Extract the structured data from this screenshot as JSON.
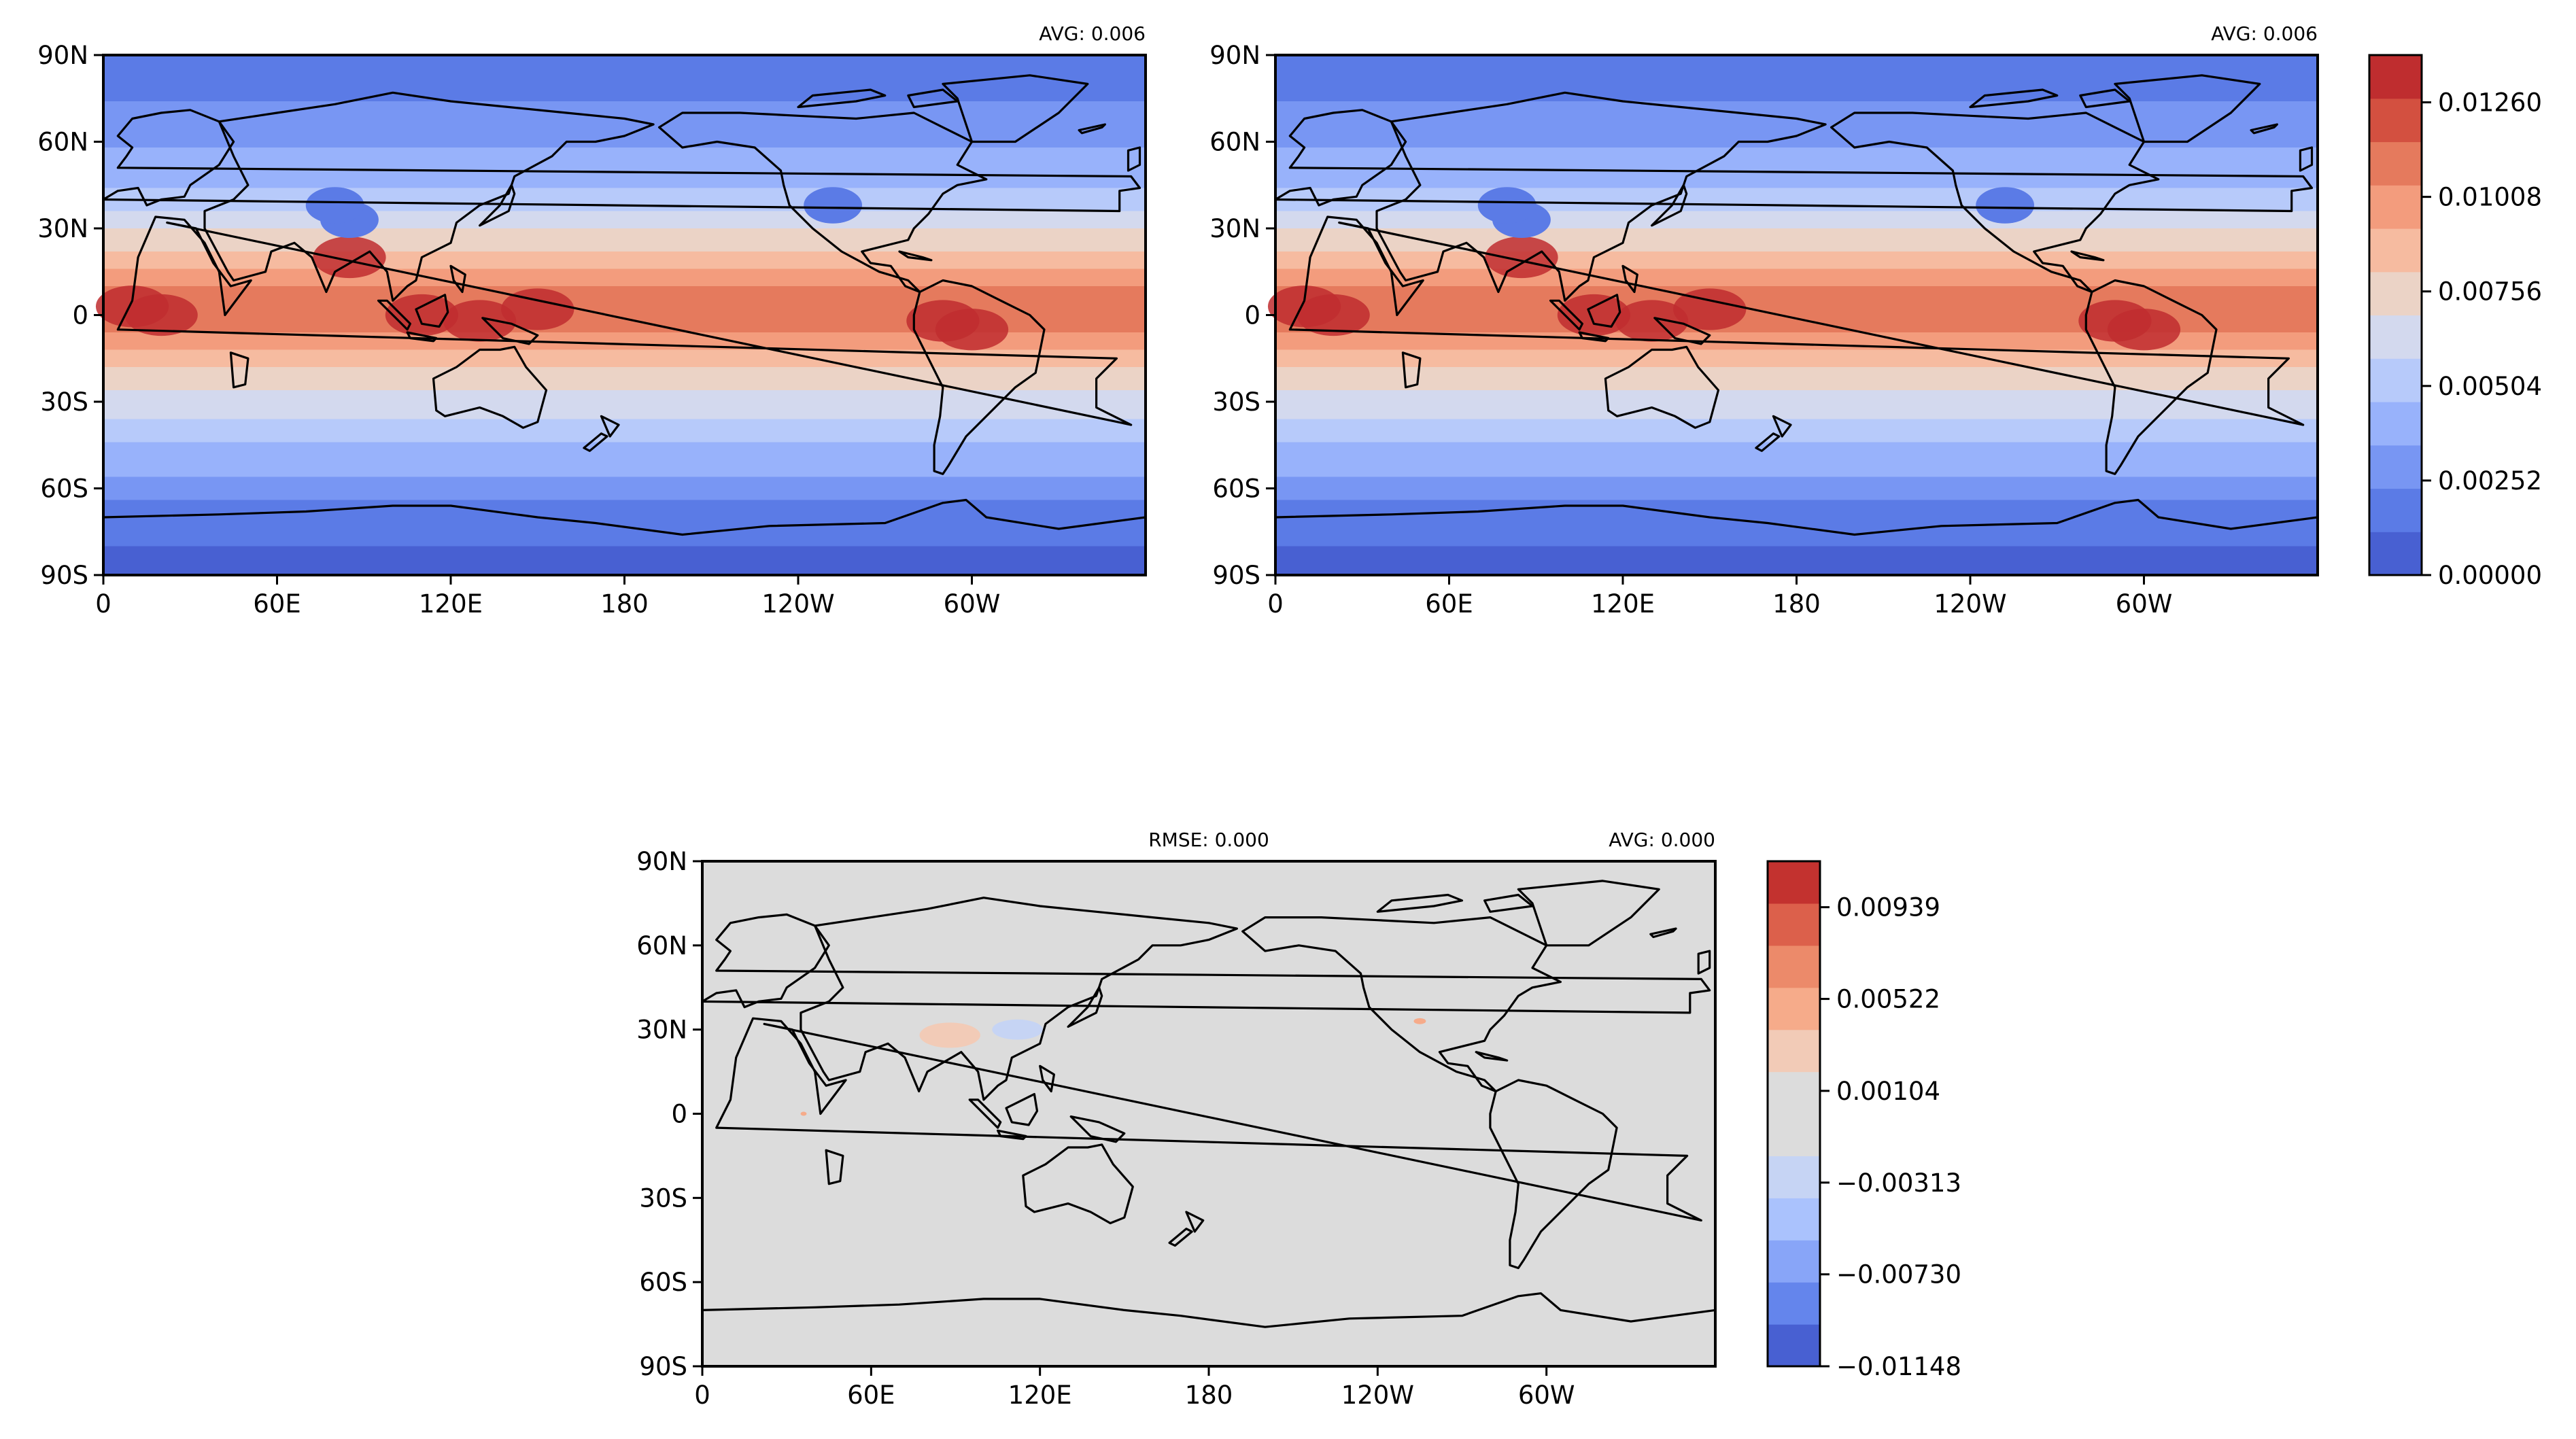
{
  "chart_data": [
    {
      "type": "heatmap",
      "panel": "top-left",
      "title": "",
      "stats": {
        "left": "",
        "right": "AVG: 0.006"
      },
      "x_ticks": [
        "0",
        "60E",
        "120E",
        "180",
        "120W",
        "60W"
      ],
      "y_ticks": [
        "90N",
        "60N",
        "30N",
        "0",
        "30S",
        "60S",
        "90S"
      ],
      "xlim": [
        0,
        360
      ],
      "ylim": [
        -90,
        90
      ],
      "legend": "none",
      "zonal_mean_profile": {
        "lat": [
          -90,
          -70,
          -60,
          -45,
          -30,
          -15,
          -5,
          5,
          15,
          30,
          45,
          60,
          75,
          90
        ],
        "value": [
          0.0008,
          0.0015,
          0.003,
          0.0045,
          0.0065,
          0.0085,
          0.0105,
          0.0112,
          0.0095,
          0.0068,
          0.0046,
          0.0032,
          0.0022,
          0.0016
        ]
      }
    },
    {
      "type": "heatmap",
      "panel": "top-right",
      "title": "",
      "stats": {
        "left": "",
        "right": "AVG: 0.006"
      },
      "x_ticks": [
        "0",
        "60E",
        "120E",
        "180",
        "120W",
        "60W"
      ],
      "y_ticks": [
        "90N",
        "60N",
        "30N",
        "0",
        "30S",
        "60S",
        "90S"
      ],
      "xlim": [
        0,
        360
      ],
      "ylim": [
        -90,
        90
      ],
      "legend": "colorbar-right",
      "colorbar": {
        "ticks": [
          "0.00000",
          "0.00252",
          "0.00504",
          "0.00756",
          "0.01008",
          "0.01260"
        ],
        "range": [
          0,
          0.01386
        ],
        "colors": [
          "#4860d2",
          "#5b7be6",
          "#7896f3",
          "#98b2fb",
          "#b7cafa",
          "#d3d9ee",
          "#ebd3c6",
          "#f6bba0",
          "#f39c7d",
          "#e57a5d",
          "#d35040",
          "#bf2d2f"
        ]
      },
      "zonal_mean_profile": {
        "lat": [
          -90,
          -70,
          -60,
          -45,
          -30,
          -15,
          -5,
          5,
          15,
          30,
          45,
          60,
          75,
          90
        ],
        "value": [
          0.0008,
          0.0015,
          0.003,
          0.0045,
          0.0065,
          0.0085,
          0.0105,
          0.0112,
          0.0095,
          0.0068,
          0.0046,
          0.0032,
          0.0022,
          0.0016
        ]
      }
    },
    {
      "type": "heatmap",
      "panel": "bottom",
      "title": "",
      "stats": {
        "left": "RMSE: 0.000",
        "right": "AVG: 0.000"
      },
      "x_ticks": [
        "0",
        "60E",
        "120E",
        "180",
        "120W",
        "60W"
      ],
      "y_ticks": [
        "90N",
        "60N",
        "30N",
        "0",
        "30S",
        "60S",
        "90S"
      ],
      "xlim": [
        0,
        360
      ],
      "ylim": [
        -90,
        90
      ],
      "legend": "colorbar-right",
      "colorbar": {
        "ticks": [
          "−0.01148",
          "−0.00730",
          "−0.00313",
          "0.00104",
          "0.00522",
          "0.00939"
        ],
        "range": [
          -0.01148,
          0.01148
        ],
        "colors": [
          "#4860d2",
          "#6485ec",
          "#88a5f8",
          "#aac2fd",
          "#c6d4f4",
          "#dcdcdc",
          "#dcdcdc",
          "#f2cbb7",
          "#f6ab8a",
          "#ec8a6a",
          "#dc604b",
          "#c3322f"
        ]
      },
      "background_value": 0
    }
  ],
  "coastline_color": "#000000"
}
